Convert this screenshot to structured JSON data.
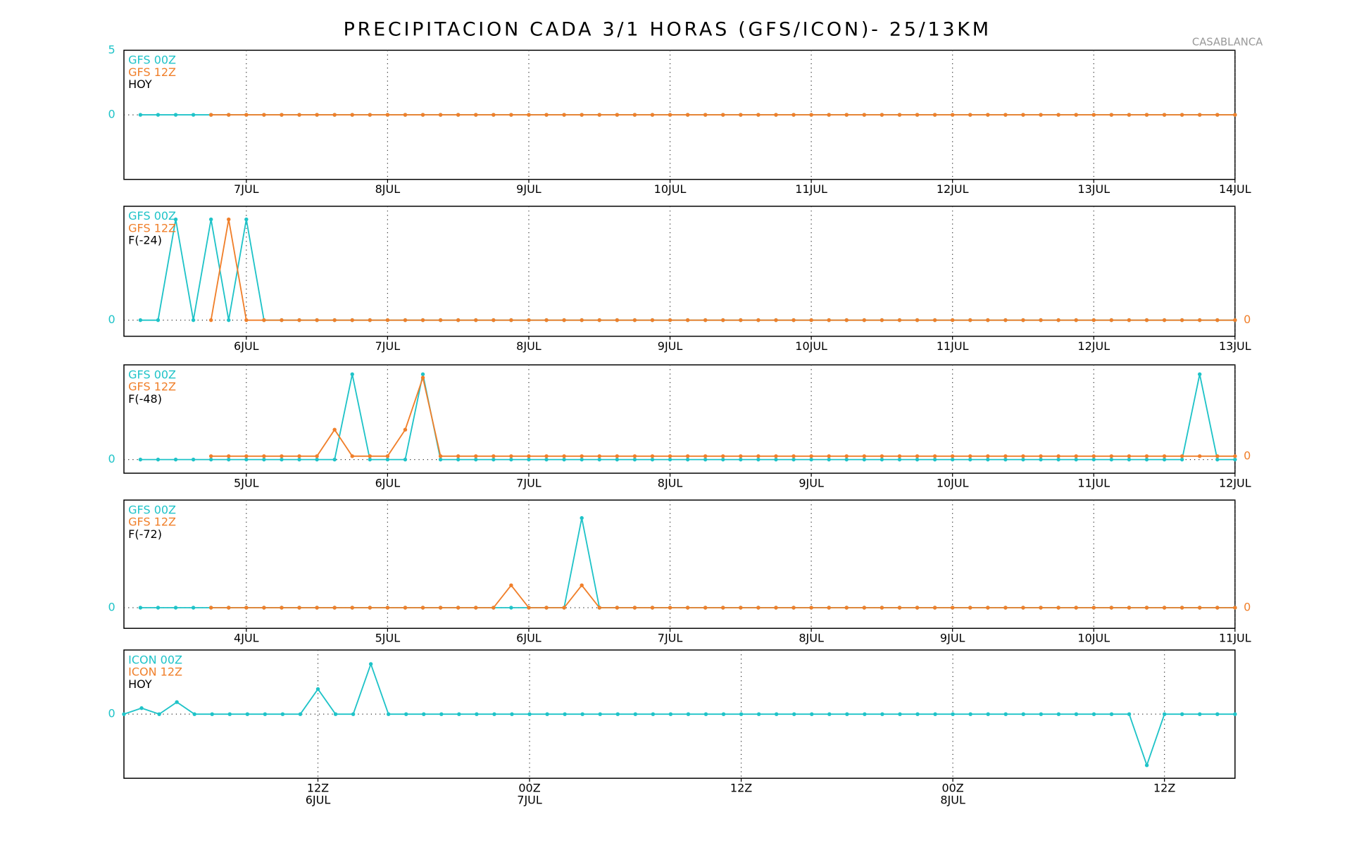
{
  "title": "PRECIPITACION CADA 3/1 HORAS (GFS/ICON)- 25/13KM",
  "annotation": "CASABLANCA",
  "chart_data": [
    {
      "type": "line",
      "label": "HOY",
      "grid": true,
      "categories": [
        null,
        null,
        null,
        null,
        null,
        null,
        "7JUL",
        null,
        null,
        null,
        null,
        null,
        null,
        null,
        "8JUL",
        null,
        null,
        null,
        null,
        null,
        null,
        null,
        "9JUL",
        null,
        null,
        null,
        null,
        null,
        null,
        null,
        "10JUL",
        null,
        null,
        null,
        null,
        null,
        null,
        null,
        "11JUL",
        null,
        null,
        null,
        null,
        null,
        null,
        null,
        "12JUL",
        null,
        null,
        null,
        null,
        null,
        null,
        null,
        "13JUL",
        null,
        null,
        null,
        null,
        null,
        null,
        null,
        "14JUL"
      ],
      "ylim": [
        -5,
        5
      ],
      "yticks": [
        0,
        5
      ],
      "series": [
        {
          "name": "GFS 00Z",
          "color": "#1fc3c8",
          "values": [
            0,
            0,
            0,
            0,
            0,
            0,
            0,
            0,
            0,
            0,
            0,
            0,
            0,
            0,
            0,
            0,
            0,
            0,
            0,
            0,
            0,
            0,
            0,
            0,
            0,
            0,
            0,
            0,
            0,
            0,
            0,
            0,
            0,
            0,
            0,
            0,
            0,
            0,
            0,
            0,
            0,
            0,
            0,
            0,
            0,
            0,
            0,
            0,
            0,
            0,
            0,
            0,
            0,
            0,
            0,
            0,
            0,
            0,
            0,
            0,
            0,
            0,
            0
          ]
        },
        {
          "name": "GFS 12Z",
          "color": "#f07f2a",
          "values": [
            null,
            null,
            null,
            null,
            0,
            0,
            0,
            0,
            0,
            0,
            0,
            0,
            0,
            0,
            0,
            0,
            0,
            0,
            0,
            0,
            0,
            0,
            0,
            0,
            0,
            0,
            0,
            0,
            0,
            0,
            0,
            0,
            0,
            0,
            0,
            0,
            0,
            0,
            0,
            0,
            0,
            0,
            0,
            0,
            0,
            0,
            0,
            0,
            0,
            0,
            0,
            0,
            0,
            0,
            0,
            0,
            0,
            0,
            0,
            0,
            0,
            0,
            0
          ]
        }
      ]
    },
    {
      "type": "line",
      "label": "F(-24)",
      "grid": true,
      "categories": [
        null,
        null,
        null,
        null,
        null,
        null,
        "6JUL",
        null,
        null,
        null,
        null,
        null,
        null,
        null,
        "7JUL",
        null,
        null,
        null,
        null,
        null,
        null,
        null,
        "8JUL",
        null,
        null,
        null,
        null,
        null,
        null,
        null,
        "9JUL",
        null,
        null,
        null,
        null,
        null,
        null,
        null,
        "10JUL",
        null,
        null,
        null,
        null,
        null,
        null,
        null,
        "11JUL",
        null,
        null,
        null,
        null,
        null,
        null,
        null,
        "12JUL",
        null,
        null,
        null,
        null,
        null,
        null,
        null,
        "13JUL"
      ],
      "ylim": [
        -0.16,
        1.13
      ],
      "yticks": [
        0
      ],
      "y2lim": [
        -0.16,
        1.13
      ],
      "y2ticks": [
        0
      ],
      "series": [
        {
          "name": "GFS 00Z",
          "color": "#1fc3c8",
          "values": [
            0,
            0,
            1,
            0,
            1,
            0,
            1,
            0,
            0,
            0,
            0,
            0,
            0,
            0,
            0,
            0,
            0,
            0,
            0,
            0,
            0,
            0,
            0,
            0,
            0,
            0,
            0,
            0,
            0,
            0,
            0,
            0,
            0,
            0,
            0,
            0,
            0,
            0,
            0,
            0,
            0,
            0,
            0,
            0,
            0,
            0,
            0,
            0,
            0,
            0,
            0,
            0,
            0,
            0,
            0,
            0,
            0,
            0,
            0,
            0,
            0,
            0,
            0
          ]
        },
        {
          "name": "GFS 12Z",
          "color": "#f07f2a",
          "axis": "y2",
          "values": [
            null,
            null,
            null,
            null,
            0,
            1,
            0,
            0,
            0,
            0,
            0,
            0,
            0,
            0,
            0,
            0,
            0,
            0,
            0,
            0,
            0,
            0,
            0,
            0,
            0,
            0,
            0,
            0,
            0,
            0,
            0,
            0,
            0,
            0,
            0,
            0,
            0,
            0,
            0,
            0,
            0,
            0,
            0,
            0,
            0,
            0,
            0,
            0,
            0,
            0,
            0,
            0,
            0,
            0,
            0,
            0,
            0,
            0,
            0,
            0,
            0,
            0,
            0
          ]
        }
      ]
    },
    {
      "type": "line",
      "label": "F(-48)",
      "grid": true,
      "categories": [
        null,
        null,
        null,
        null,
        null,
        null,
        "5JUL",
        null,
        null,
        null,
        null,
        null,
        null,
        null,
        "6JUL",
        null,
        null,
        null,
        null,
        null,
        null,
        null,
        "7JUL",
        null,
        null,
        null,
        null,
        null,
        null,
        null,
        "8JUL",
        null,
        null,
        null,
        null,
        null,
        null,
        null,
        "9JUL",
        null,
        null,
        null,
        null,
        null,
        null,
        null,
        "10JUL",
        null,
        null,
        null,
        null,
        null,
        null,
        null,
        "11JUL",
        null,
        null,
        null,
        null,
        null,
        null,
        null,
        "12JUL"
      ],
      "ylim": [
        -0.16,
        1.11
      ],
      "yticks": [
        0
      ],
      "y2lim": [
        -0.2,
        1.07
      ],
      "y2ticks": [
        0
      ],
      "series": [
        {
          "name": "GFS 00Z",
          "color": "#1fc3c8",
          "values": [
            0,
            0,
            0,
            0,
            0,
            0,
            0,
            0,
            0,
            0,
            0,
            0,
            1,
            0,
            0,
            0,
            1,
            0,
            0,
            0,
            0,
            0,
            0,
            0,
            0,
            0,
            0,
            0,
            0,
            0,
            0,
            0,
            0,
            0,
            0,
            0,
            0,
            0,
            0,
            0,
            0,
            0,
            0,
            0,
            0,
            0,
            0,
            0,
            0,
            0,
            0,
            0,
            0,
            0,
            0,
            0,
            0,
            0,
            0,
            0,
            1,
            0,
            0
          ]
        },
        {
          "name": "GFS 12Z",
          "color": "#f07f2a",
          "axis": "y2",
          "values": [
            null,
            null,
            null,
            null,
            0,
            0,
            0,
            0,
            0,
            0,
            0,
            0.31,
            0,
            0,
            0,
            0.31,
            0.92,
            0,
            0,
            0,
            0,
            0,
            0,
            0,
            0,
            0,
            0,
            0,
            0,
            0,
            0,
            0,
            0,
            0,
            0,
            0,
            0,
            0,
            0,
            0,
            0,
            0,
            0,
            0,
            0,
            0,
            0,
            0,
            0,
            0,
            0,
            0,
            0,
            0,
            0,
            0,
            0,
            0,
            0,
            0,
            0,
            0,
            0
          ]
        }
      ]
    },
    {
      "type": "line",
      "label": "F(-72)",
      "grid": true,
      "categories": [
        null,
        null,
        null,
        null,
        null,
        null,
        "4JUL",
        null,
        null,
        null,
        null,
        null,
        null,
        null,
        "5JUL",
        null,
        null,
        null,
        null,
        null,
        null,
        null,
        "6JUL",
        null,
        null,
        null,
        null,
        null,
        null,
        null,
        "7JUL",
        null,
        null,
        null,
        null,
        null,
        null,
        null,
        "8JUL",
        null,
        null,
        null,
        null,
        null,
        null,
        null,
        "9JUL",
        null,
        null,
        null,
        null,
        null,
        null,
        null,
        "10JUL",
        null,
        null,
        null,
        null,
        null,
        null,
        null,
        "11JUL"
      ],
      "ylim": [
        -0.23,
        1.2
      ],
      "yticks": [
        0
      ],
      "y2lim": [
        -0.23,
        1.2
      ],
      "y2ticks": [
        0
      ],
      "series": [
        {
          "name": "GFS 00Z",
          "color": "#1fc3c8",
          "values": [
            0,
            0,
            0,
            0,
            0,
            0,
            0,
            0,
            0,
            0,
            0,
            0,
            0,
            0,
            0,
            0,
            0,
            0,
            0,
            0,
            0,
            0,
            0,
            0,
            0,
            1,
            0,
            0,
            0,
            0,
            0,
            0,
            0,
            0,
            0,
            0,
            0,
            0,
            0,
            0,
            0,
            0,
            0,
            0,
            0,
            0,
            0,
            0,
            0,
            0,
            0,
            0,
            0,
            0,
            0,
            0,
            0,
            0,
            0,
            0,
            0,
            0,
            0
          ]
        },
        {
          "name": "GFS 12Z",
          "color": "#f07f2a",
          "axis": "y2",
          "values": [
            null,
            null,
            null,
            null,
            0,
            0,
            0,
            0,
            0,
            0,
            0,
            0,
            0,
            0,
            0,
            0,
            0,
            0,
            0,
            0,
            0,
            0.25,
            0,
            0,
            0,
            0.25,
            0,
            0,
            0,
            0,
            0,
            0,
            0,
            0,
            0,
            0,
            0,
            0,
            0,
            0,
            0,
            0,
            0,
            0,
            0,
            0,
            0,
            0,
            0,
            0,
            0,
            0,
            0,
            0,
            0,
            0,
            0,
            0,
            0,
            0,
            0,
            0,
            0
          ]
        }
      ]
    },
    {
      "type": "line",
      "label": "HOY",
      "grid": true,
      "categories": [
        null,
        null,
        null,
        null,
        null,
        null,
        null,
        null,
        null,
        null,
        null,
        "12Z",
        null,
        null,
        null,
        null,
        null,
        null,
        null,
        null,
        null,
        null,
        null,
        "00Z",
        null,
        null,
        null,
        null,
        null,
        null,
        null,
        null,
        null,
        null,
        null,
        "12Z",
        null,
        null,
        null,
        null,
        null,
        null,
        null,
        null,
        null,
        null,
        null,
        "00Z",
        null,
        null,
        null,
        null,
        null,
        null,
        null,
        null,
        null,
        null,
        null,
        "12Z",
        null,
        null,
        null,
        null
      ],
      "categories_sub": [
        null,
        null,
        null,
        null,
        null,
        null,
        null,
        null,
        null,
        null,
        null,
        "6JUL",
        null,
        null,
        null,
        null,
        null,
        null,
        null,
        null,
        null,
        null,
        null,
        "7JUL",
        null,
        null,
        null,
        null,
        null,
        null,
        null,
        null,
        null,
        null,
        null,
        null,
        null,
        null,
        null,
        null,
        null,
        null,
        null,
        null,
        null,
        null,
        null,
        "8JUL",
        null,
        null,
        null,
        null,
        null,
        null,
        null,
        null,
        null,
        null,
        null,
        null,
        null,
        null,
        null,
        null
      ],
      "ylim": [
        -1.28,
        1.28
      ],
      "yticks": [
        0
      ],
      "series": [
        {
          "name": "ICON 00Z",
          "color": "#1fc3c8",
          "values": [
            0,
            0.12,
            0,
            0.24,
            0,
            0,
            0,
            0,
            0,
            0,
            0,
            0.5,
            0,
            0,
            1,
            0,
            0,
            0,
            0,
            0,
            0,
            0,
            0,
            0,
            0,
            0,
            0,
            0,
            0,
            0,
            0,
            0,
            0,
            0,
            0,
            0,
            0,
            0,
            0,
            0,
            0,
            0,
            0,
            0,
            0,
            0,
            0,
            0,
            0,
            0,
            0,
            0,
            0,
            0,
            0,
            0,
            0,
            0,
            -1.02,
            0,
            0,
            0,
            0,
            0
          ]
        },
        {
          "name": "ICON 12Z",
          "color": "#f07f2a",
          "values": [
            null,
            null,
            null,
            null,
            null,
            null,
            null,
            null,
            null,
            null,
            null,
            null,
            null,
            null,
            null,
            null,
            null,
            null,
            null,
            null,
            null,
            null,
            null,
            null,
            null,
            null,
            null,
            null,
            null,
            null,
            null,
            null,
            null,
            null,
            null,
            null,
            null,
            null,
            null,
            null,
            null,
            null,
            null,
            null,
            null,
            null,
            null,
            null,
            null,
            null,
            null,
            null,
            null,
            null,
            null,
            null,
            null,
            null,
            null,
            null,
            null,
            null,
            null,
            null
          ]
        }
      ]
    }
  ]
}
